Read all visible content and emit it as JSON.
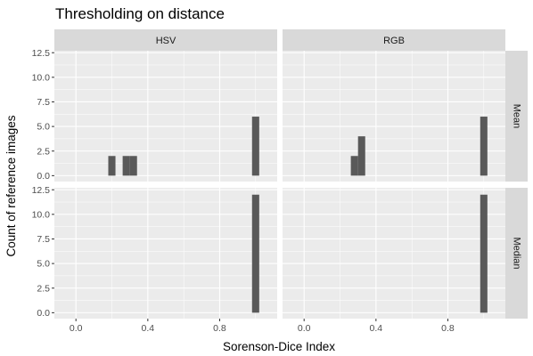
{
  "title": "Thresholding on distance",
  "chart_data": {
    "type": "bar",
    "title": "Thresholding on distance",
    "xlabel": "Sorenson-Dice Index",
    "ylabel": "Count of reference images",
    "xlim": [
      -0.12,
      1.12
    ],
    "ylim": [
      -0.6,
      12.7
    ],
    "x_ticks": [
      0.0,
      0.4,
      0.8
    ],
    "x_tick_labels": [
      "0.0",
      "0.4",
      "0.8"
    ],
    "y_ticks": [
      0,
      2.5,
      5,
      7.5,
      10,
      12.5
    ],
    "y_tick_labels": [
      "0.0",
      "2.5",
      "5.0",
      "7.5",
      "10.0",
      "12.5"
    ],
    "bin_width": 0.04,
    "bar_color": "#595959",
    "grid": true,
    "col_facets": [
      "HSV",
      "RGB"
    ],
    "row_facets": [
      "Mean",
      "Median"
    ],
    "panels": [
      {
        "col": "HSV",
        "row": "Mean",
        "bins": [
          {
            "x": 0.2,
            "count": 2
          },
          {
            "x": 0.28,
            "count": 2
          },
          {
            "x": 0.32,
            "count": 2
          },
          {
            "x": 1.0,
            "count": 6
          }
        ]
      },
      {
        "col": "RGB",
        "row": "Mean",
        "bins": [
          {
            "x": 0.28,
            "count": 2
          },
          {
            "x": 0.32,
            "count": 4
          },
          {
            "x": 1.0,
            "count": 6
          }
        ]
      },
      {
        "col": "HSV",
        "row": "Median",
        "bins": [
          {
            "x": 1.0,
            "count": 12
          }
        ]
      },
      {
        "col": "RGB",
        "row": "Median",
        "bins": [
          {
            "x": 1.0,
            "count": 12
          }
        ]
      }
    ]
  }
}
